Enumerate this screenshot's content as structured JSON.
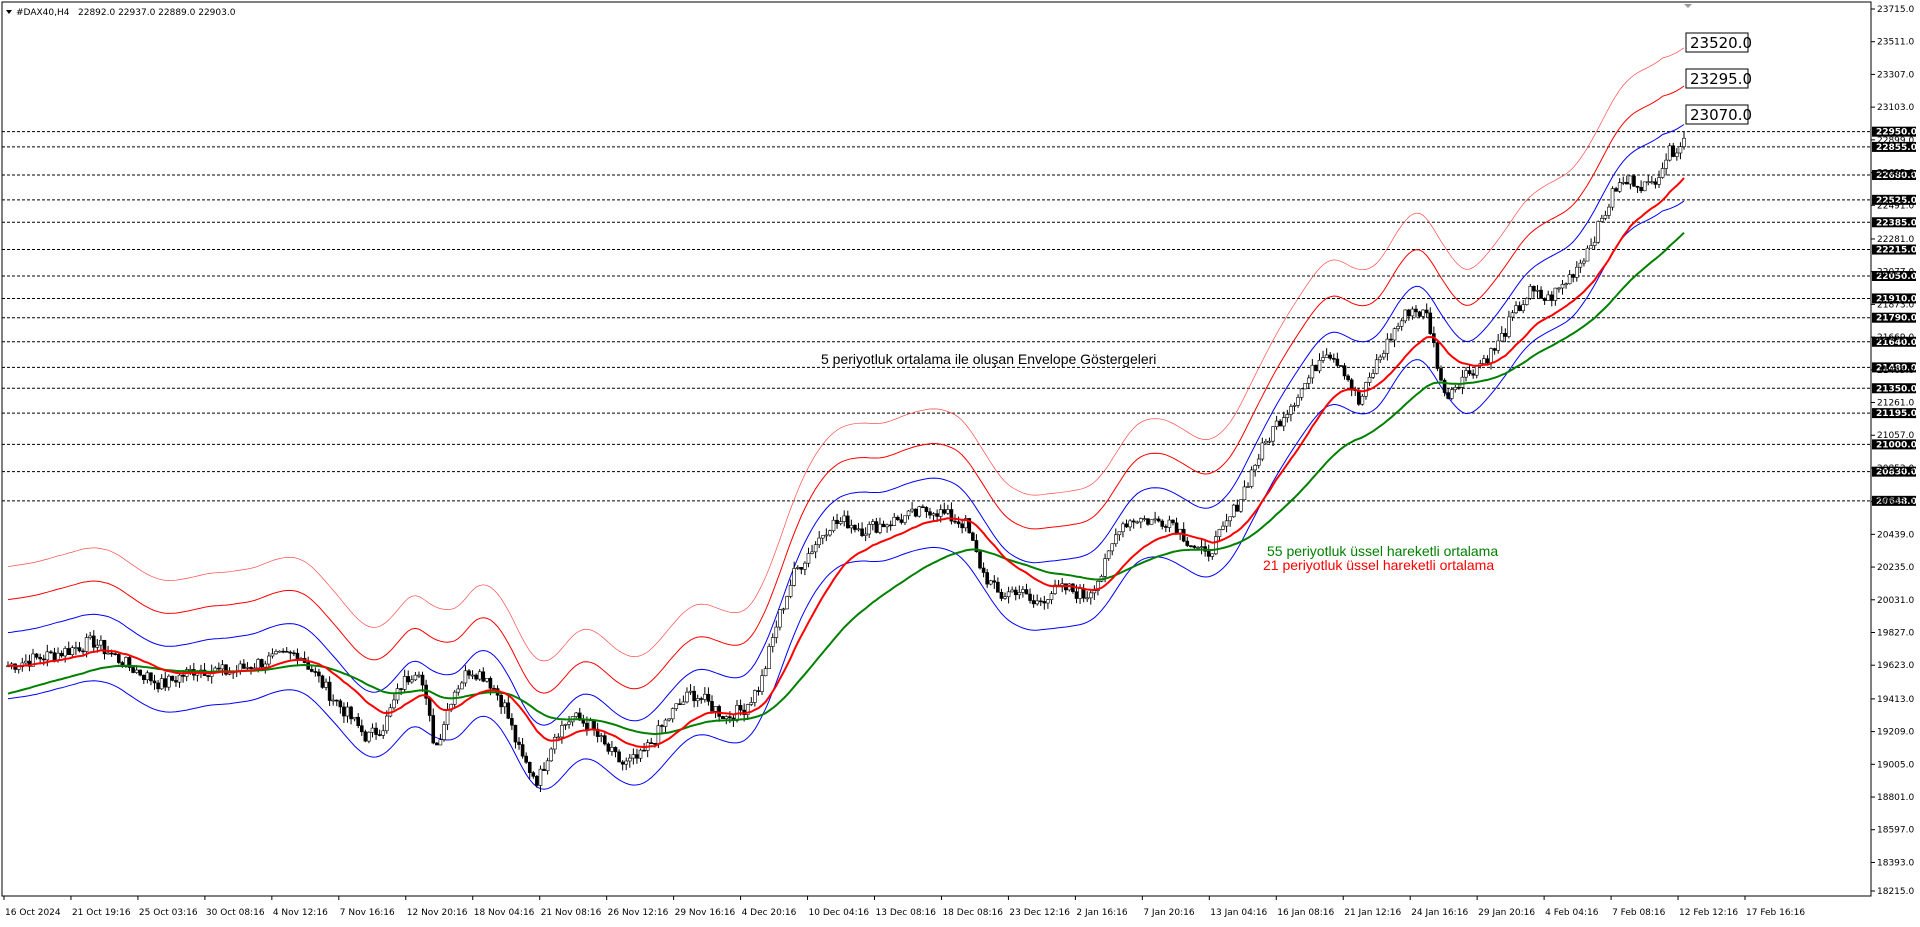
{
  "header": {
    "symbol": "#DAX40,H4",
    "ohlc": "22892.0 22937.0 22889.0 22903.0"
  },
  "chart_data": {
    "type": "candlestick",
    "y_range": [
      18215,
      23715
    ],
    "y_ticks": [
      "23715.0",
      "23511.0",
      "23307.0",
      "23103.0",
      "22899.0",
      "22695.0",
      "22491.0",
      "22281.0",
      "22077.0",
      "21873.0",
      "21669.0",
      "21465.0",
      "21261.0",
      "21057.0",
      "20853.0",
      "20643.0",
      "20439.0",
      "20235.0",
      "20031.0",
      "19827.0",
      "19623.0",
      "19413.0",
      "19209.0",
      "19005.0",
      "18801.0",
      "18597.0",
      "18393.0",
      "18215.0"
    ],
    "levels": [
      "22950.0",
      "22855.0",
      "22680.0",
      "22525.0",
      "22385.0",
      "22215.0",
      "22050.0",
      "21910.0",
      "21790.0",
      "21640.0",
      "21480.0",
      "21350.0",
      "21195.0",
      "21000.0",
      "20830.0",
      "20648.0"
    ],
    "x_ticks": [
      "16 Oct 2024",
      "21 Oct 19:16",
      "25 Oct 03:16",
      "30 Oct 08:16",
      "4 Nov 12:16",
      "7 Nov 16:16",
      "12 Nov 20:16",
      "18 Nov 04:16",
      "21 Nov 08:16",
      "26 Nov 12:16",
      "29 Nov 16:16",
      "4 Dec 20:16",
      "10 Dec 04:16",
      "13 Dec 08:16",
      "18 Dec 08:16",
      "23 Dec 12:16",
      "2 Jan 16:16",
      "7 Jan 20:16",
      "13 Jan 04:16",
      "16 Jan 08:16",
      "21 Jan 12:16",
      "24 Jan 16:16",
      "29 Jan 20:16",
      "4 Feb 04:16",
      "7 Feb 08:16",
      "12 Feb 12:16",
      "17 Feb 16:16"
    ],
    "price_path": [
      [
        0,
        19620
      ],
      [
        3,
        19700
      ],
      [
        5,
        19770
      ],
      [
        7,
        19620
      ],
      [
        9,
        19500
      ],
      [
        11,
        19600
      ],
      [
        13,
        19580
      ],
      [
        15,
        19650
      ],
      [
        17,
        19700
      ],
      [
        19,
        19420
      ],
      [
        20,
        19300
      ],
      [
        21,
        19170
      ],
      [
        22,
        19250
      ],
      [
        23,
        19500
      ],
      [
        24,
        19620
      ],
      [
        25,
        19100
      ],
      [
        26,
        19450
      ],
      [
        27,
        19600
      ],
      [
        28,
        19550
      ],
      [
        29,
        19380
      ],
      [
        30,
        19050
      ],
      [
        31,
        18900
      ],
      [
        32,
        19200
      ],
      [
        33,
        19300
      ],
      [
        34,
        19250
      ],
      [
        35,
        19100
      ],
      [
        36,
        19000
      ],
      [
        37,
        19050
      ],
      [
        38,
        19200
      ],
      [
        39,
        19350
      ],
      [
        40,
        19450
      ],
      [
        41,
        19380
      ],
      [
        42,
        19300
      ],
      [
        43,
        19350
      ],
      [
        44,
        19500
      ],
      [
        45,
        19900
      ],
      [
        46,
        20200
      ],
      [
        47,
        20350
      ],
      [
        48,
        20500
      ],
      [
        49,
        20520
      ],
      [
        50,
        20470
      ],
      [
        51,
        20500
      ],
      [
        52,
        20530
      ],
      [
        53,
        20560
      ],
      [
        54,
        20600
      ],
      [
        55,
        20550
      ],
      [
        56,
        20500
      ],
      [
        57,
        20200
      ],
      [
        58,
        20050
      ],
      [
        59,
        20100
      ],
      [
        60,
        20000
      ],
      [
        61,
        20080
      ],
      [
        62,
        20100
      ],
      [
        63,
        20050
      ],
      [
        64,
        20200
      ],
      [
        65,
        20500
      ],
      [
        66,
        20540
      ],
      [
        67,
        20520
      ],
      [
        68,
        20530
      ],
      [
        69,
        20400
      ],
      [
        70,
        20300
      ],
      [
        71,
        20450
      ],
      [
        72,
        20650
      ],
      [
        73,
        20900
      ],
      [
        74,
        21100
      ],
      [
        75,
        21250
      ],
      [
        76,
        21400
      ],
      [
        77,
        21600
      ],
      [
        78,
        21500
      ],
      [
        79,
        21250
      ],
      [
        80,
        21500
      ],
      [
        81,
        21700
      ],
      [
        82,
        21850
      ],
      [
        83,
        21800
      ],
      [
        84,
        21300
      ],
      [
        85,
        21420
      ],
      [
        86,
        21500
      ],
      [
        87,
        21600
      ],
      [
        88,
        21800
      ],
      [
        89,
        21950
      ],
      [
        90,
        21900
      ],
      [
        91,
        22000
      ],
      [
        92,
        22150
      ],
      [
        93,
        22350
      ],
      [
        94,
        22600
      ],
      [
        95,
        22650
      ],
      [
        96,
        22600
      ],
      [
        97,
        22800
      ],
      [
        98,
        22903
      ]
    ],
    "series": [
      {
        "name": "55 periyotluk üssel hareketli ortalama",
        "color": "#008000",
        "period": 55
      },
      {
        "name": "21 periyotluk üssel hareketli ortalama",
        "color": "#ff0000",
        "period": 21
      }
    ],
    "envelope_note": "5 periyotluk ortalama ile oluşan Envelope Göstergeleri",
    "envelope_targets": [
      "23520.0",
      "23295.0",
      "23070.0"
    ]
  },
  "colors": {
    "up": "#000000",
    "down": "#000000",
    "grid": "#000000",
    "env_inner": "#0000ff",
    "env_mid": "#ff0000",
    "env_outer": "#ff4d4d"
  }
}
